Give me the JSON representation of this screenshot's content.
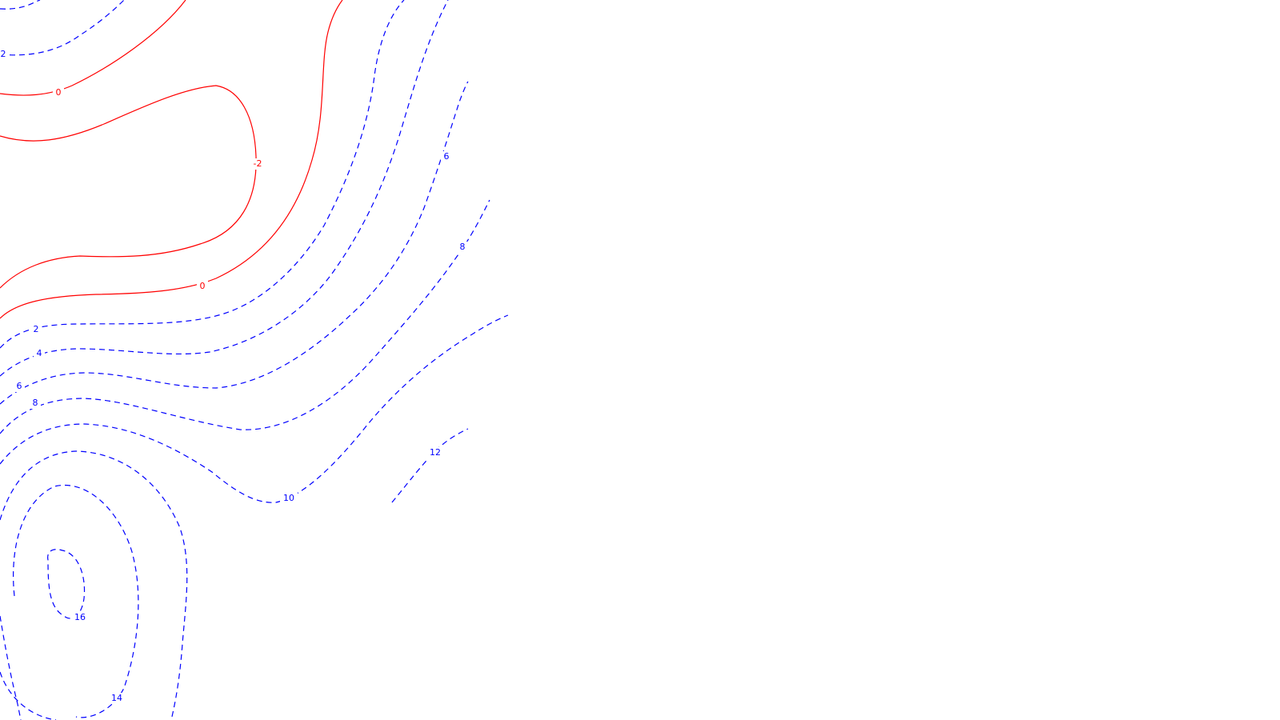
{
  "map": {
    "colors": {
      "nonpositive": "#ff0000",
      "positive": "#0000ff",
      "background": "#ffffff"
    },
    "contour_levels": [
      "-2",
      "0",
      "2",
      "4",
      "6",
      "8",
      "10",
      "12",
      "14",
      "16"
    ],
    "labels": {
      "top_2": "2",
      "top_0": "0",
      "mid_neg2": "-2",
      "low_0": "0",
      "left_2": "2",
      "left_4": "4",
      "left_6": "6",
      "left_8": "8",
      "right_6": "6",
      "right_8": "8",
      "bottom_10": "10",
      "bottom_12": "12",
      "bottom_14": "14",
      "bottom_16": "16"
    }
  }
}
